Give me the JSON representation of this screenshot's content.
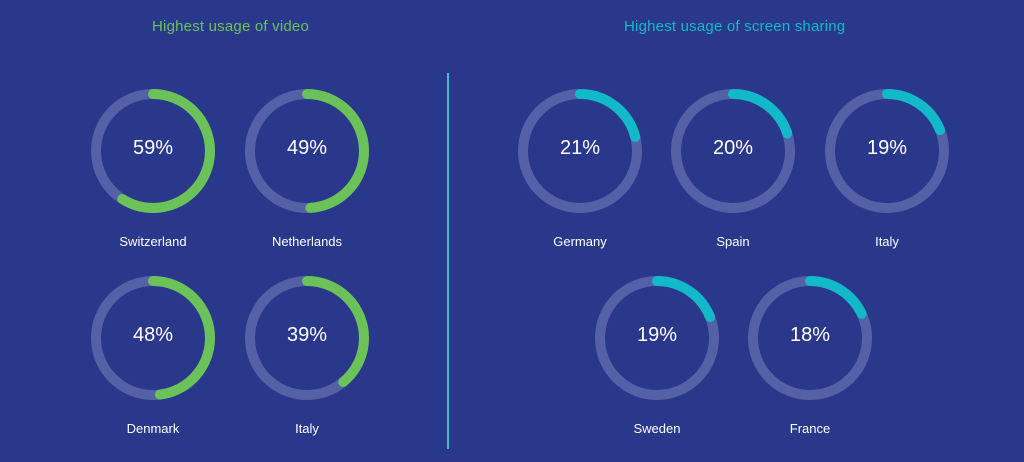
{
  "colors": {
    "background": "#2a388b",
    "track": "#5561a7",
    "video_accent": "#6ac259",
    "sharing_accent": "#12b9c8",
    "divider": "#3fbfc7"
  },
  "video": {
    "title": "Highest usage of video"
  },
  "sharing": {
    "title": "Highest usage of screen sharing"
  },
  "chart_data": [
    {
      "type": "donut",
      "title": "Highest usage of video",
      "unit": "%",
      "items": [
        {
          "label": "Switzerland",
          "value": 59,
          "display": "59%"
        },
        {
          "label": "Netherlands",
          "value": 49,
          "display": "49%"
        },
        {
          "label": "Denmark",
          "value": 48,
          "display": "48%"
        },
        {
          "label": "Italy",
          "value": 39,
          "display": "39%"
        }
      ]
    },
    {
      "type": "donut",
      "title": "Highest usage of screen sharing",
      "unit": "%",
      "items": [
        {
          "label": "Germany",
          "value": 21,
          "display": "21%"
        },
        {
          "label": "Spain",
          "value": 20,
          "display": "20%"
        },
        {
          "label": "Italy",
          "value": 19,
          "display": "19%"
        },
        {
          "label": "Sweden",
          "value": 19,
          "display": "19%"
        },
        {
          "label": "France",
          "value": 18,
          "display": "18%"
        }
      ]
    }
  ]
}
